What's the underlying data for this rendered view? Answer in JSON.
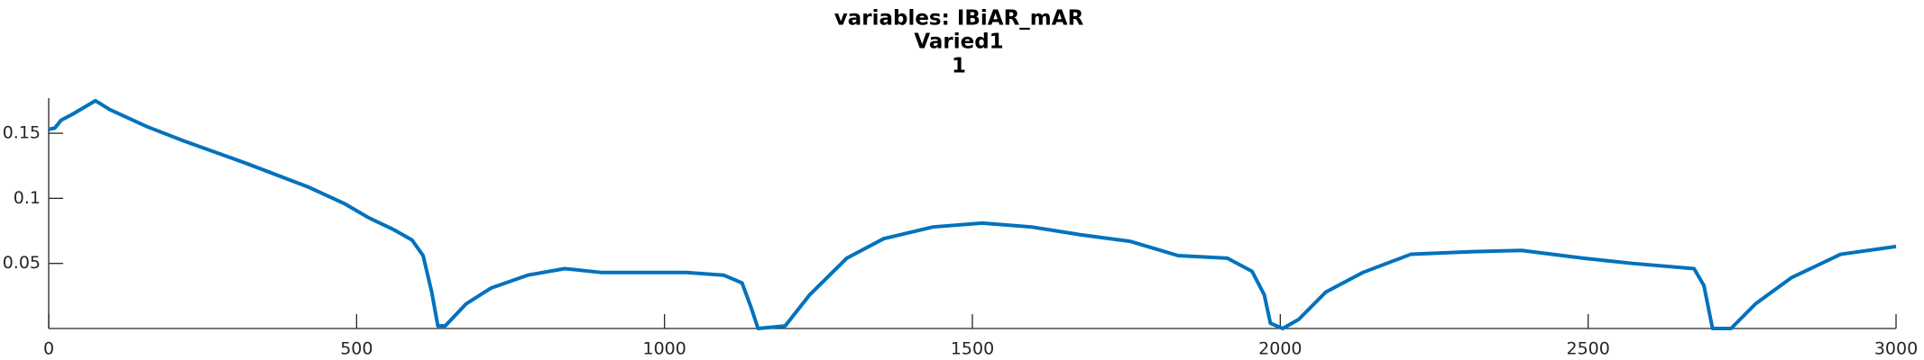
{
  "chart_data": {
    "type": "line",
    "title": "variables: IBiAR_mAR",
    "subtitle": "Varied1",
    "subtitle2": "1",
    "x": [
      0,
      10,
      20,
      40,
      76,
      100,
      160,
      220,
      320,
      420,
      480,
      520,
      560,
      590,
      608,
      622,
      632,
      644,
      678,
      718,
      778,
      838,
      898,
      958,
      1036,
      1096,
      1126,
      1140,
      1152,
      1196,
      1236,
      1296,
      1356,
      1436,
      1516,
      1596,
      1676,
      1756,
      1834,
      1914,
      1954,
      1974,
      1984,
      2004,
      2030,
      2074,
      2134,
      2212,
      2312,
      2392,
      2492,
      2572,
      2672,
      2688,
      2702,
      2732,
      2772,
      2830,
      2910,
      3000
    ],
    "series": [
      {
        "name": "IBiAR_mAR",
        "color": "#0072bd",
        "values": [
          0.153,
          0.154,
          0.16,
          0.165,
          0.175,
          0.168,
          0.155,
          0.144,
          0.127,
          0.109,
          0.096,
          0.085,
          0.076,
          0.068,
          0.056,
          0.028,
          0.002,
          0.002,
          0.019,
          0.031,
          0.041,
          0.046,
          0.043,
          0.043,
          0.043,
          0.041,
          0.035,
          0.017,
          0.0,
          0.002,
          0.026,
          0.054,
          0.069,
          0.078,
          0.081,
          0.078,
          0.072,
          0.067,
          0.056,
          0.054,
          0.044,
          0.026,
          0.004,
          0.0,
          0.007,
          0.028,
          0.043,
          0.057,
          0.059,
          0.06,
          0.054,
          0.05,
          0.046,
          0.033,
          0.0,
          0.0,
          0.019,
          0.039,
          0.057,
          0.063
        ]
      }
    ],
    "xlim": [
      0,
      3000
    ],
    "xticks": [
      0,
      500,
      1000,
      1500,
      2000,
      2500,
      3000
    ],
    "ylim": [
      0,
      0.177
    ],
    "yticks": [
      0.05,
      0.1,
      0.15
    ]
  }
}
